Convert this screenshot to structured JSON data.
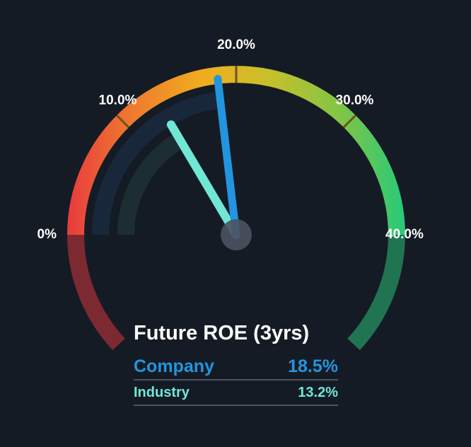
{
  "chart_data": {
    "type": "gauge",
    "title": "Future ROE (3yrs)",
    "scale_min": 0,
    "scale_max": 40,
    "ticks": [
      {
        "value": 0,
        "label": "0%"
      },
      {
        "value": 10,
        "label": "10.0%"
      },
      {
        "value": 20,
        "label": "20.0%"
      },
      {
        "value": 30,
        "label": "30.0%"
      },
      {
        "value": 40,
        "label": "40.0%"
      }
    ],
    "series": [
      {
        "name": "Company",
        "value": 18.5,
        "display": "18.5%",
        "color": "#2394df"
      },
      {
        "name": "Industry",
        "value": 13.2,
        "display": "13.2%",
        "color": "#71e7d6"
      }
    ]
  },
  "colors": {
    "background": "#151b24",
    "gradient_stops": [
      "#e83b3e",
      "#ef7d2e",
      "#f1ad1e",
      "#c7c02b",
      "#84c544",
      "#26ca7a"
    ],
    "low_extension": "#7c2932",
    "high_extension": "#207452",
    "company_track": "#18283a",
    "industry_track": "#1d2d34",
    "tick_mark": "#6b5316",
    "pivot": "#4b5260",
    "rule": "#4b5260"
  }
}
